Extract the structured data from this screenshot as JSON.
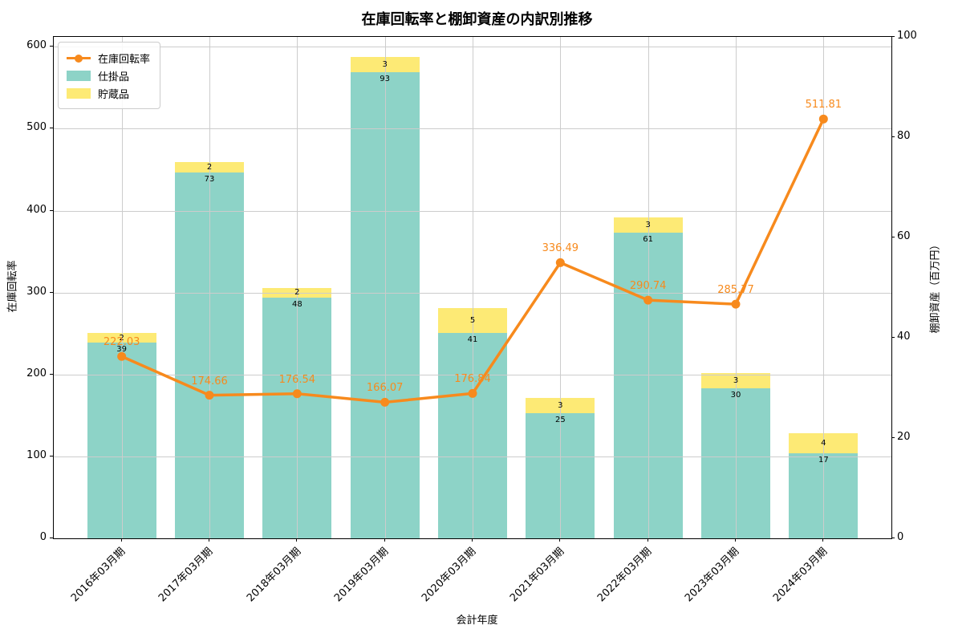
{
  "title": "在庫回転率と棚卸資産の内訳別推移",
  "colors": {
    "line_orange": "#f78a1d",
    "bar_teal": "#8dd3c7",
    "bar_yellow": "#fdea75",
    "grid": "#cccccc",
    "spine": "#000000"
  },
  "chart_data": {
    "type": "bar",
    "subtype": "stacked-bars-with-line",
    "title": "在庫回転率と棚卸資産の内訳別推移",
    "xlabel": "会計年度",
    "ylabel_left": "在庫回転率",
    "ylabel_right": "棚卸資産（百万円）",
    "categories": [
      "2016年03月期",
      "2017年03月期",
      "2018年03月期",
      "2019年03月期",
      "2020年03月期",
      "2021年03月期",
      "2022年03月期",
      "2023年03月期",
      "2024年03月期"
    ],
    "series": [
      {
        "name": "在庫回転率",
        "type": "line",
        "axis": "left",
        "color": "#f78a1d",
        "values": [
          222.03,
          174.66,
          176.54,
          166.07,
          176.84,
          336.49,
          290.74,
          285.77,
          511.81
        ]
      },
      {
        "name": "仕掛品",
        "type": "bar",
        "axis": "right",
        "color": "#8dd3c7",
        "values": [
          39,
          73,
          48,
          93,
          41,
          25,
          61,
          30,
          17
        ]
      },
      {
        "name": "貯蔵品",
        "type": "bar",
        "axis": "right",
        "color": "#fdea75",
        "values": [
          2,
          2,
          2,
          3,
          5,
          3,
          3,
          3,
          4
        ]
      }
    ],
    "left_axis": {
      "ticks": [
        0,
        100,
        200,
        300,
        400,
        500,
        600
      ],
      "max": 612
    },
    "right_axis": {
      "ticks": [
        0,
        20,
        40,
        60,
        80,
        100
      ],
      "max": 100
    },
    "grid": true,
    "legend_position": "upper left"
  }
}
